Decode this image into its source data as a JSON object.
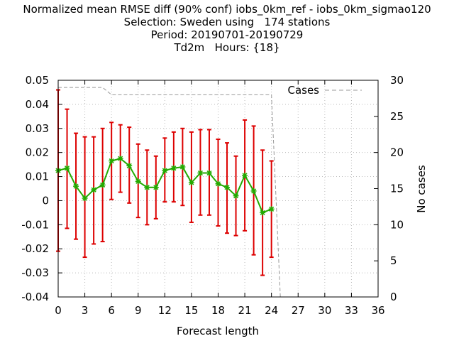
{
  "title_lines": [
    "Normalized mean RMSE diff (90% conf) iobs_0km_ref - iobs_0km_sigmao120",
    "Selection: Sweden using   174 stations",
    "Period: 20190701-20190729",
    "Td2m   Hours: {18}"
  ],
  "chart_data": {
    "type": "line",
    "title": "Normalized mean RMSE diff (90% conf) iobs_0km_ref - iobs_0km_sigmao120",
    "xlabel": "Forecast length",
    "ylabel": "",
    "y2label": "No cases",
    "xlim": [
      0,
      36
    ],
    "ylim": [
      -0.04,
      0.05
    ],
    "y2lim": [
      0,
      30
    ],
    "xticks": [
      0,
      3,
      6,
      9,
      12,
      15,
      18,
      21,
      24,
      27,
      30,
      33,
      36
    ],
    "xtick_labels": [
      "0",
      "3",
      "6",
      "9",
      "12",
      "15",
      "18",
      "21",
      "24",
      "27",
      "30",
      "33",
      "36"
    ],
    "yticks": [
      -0.04,
      -0.03,
      -0.02,
      -0.01,
      0,
      0.01,
      0.02,
      0.03,
      0.04,
      0.05
    ],
    "ytick_labels": [
      "-0.04",
      "-0.03",
      "-0.02",
      "-0.01",
      "0",
      "0.01",
      "0.02",
      "0.03",
      "0.04",
      "0.05"
    ],
    "y2ticks": [
      0,
      5,
      10,
      15,
      20,
      25,
      30
    ],
    "y2tick_labels": [
      "0",
      "5",
      "10",
      "15",
      "20",
      "25",
      "30"
    ],
    "grid": true,
    "legend": "top-right",
    "series": [
      {
        "name": "",
        "color": "#22aa00",
        "errorbar_color": "#dd0000",
        "x": [
          0,
          1,
          2,
          3,
          4,
          5,
          6,
          7,
          8,
          9,
          10,
          11,
          12,
          13,
          14,
          15,
          16,
          17,
          18,
          19,
          20,
          21,
          22,
          23,
          24
        ],
        "y": [
          0.0125,
          0.0135,
          0.006,
          0.001,
          0.0045,
          0.0065,
          0.0165,
          0.0175,
          0.0145,
          0.008,
          0.0055,
          0.0055,
          0.0125,
          0.0135,
          0.014,
          0.0075,
          0.0115,
          0.0115,
          0.007,
          0.0055,
          0.002,
          0.0105,
          0.004,
          -0.005,
          -0.0035
        ],
        "lower": [
          -0.021,
          -0.0115,
          -0.016,
          -0.0235,
          -0.018,
          -0.017,
          0.0005,
          0.0035,
          -0.001,
          -0.007,
          -0.01,
          -0.0075,
          -0.0005,
          -0.0005,
          -0.002,
          -0.009,
          -0.006,
          -0.006,
          -0.0105,
          -0.0135,
          -0.0145,
          -0.0125,
          -0.0225,
          -0.031,
          -0.0235
        ],
        "upper": [
          0.046,
          0.038,
          0.028,
          0.0265,
          0.0265,
          0.03,
          0.0325,
          0.0315,
          0.0305,
          0.0235,
          0.021,
          0.0185,
          0.026,
          0.0285,
          0.03,
          0.0285,
          0.0295,
          0.0295,
          0.0255,
          0.024,
          0.0185,
          0.0335,
          0.031,
          0.021,
          0.0165
        ]
      },
      {
        "name": "Cases",
        "axis": "y2",
        "color": "#999999",
        "x": [
          0,
          1,
          2,
          3,
          4,
          5,
          6,
          7,
          8,
          9,
          10,
          11,
          12,
          13,
          14,
          15,
          16,
          17,
          18,
          19,
          20,
          21,
          22,
          23,
          24,
          25,
          26,
          27,
          28,
          29,
          30,
          31,
          32,
          33,
          34,
          35,
          36
        ],
        "values": [
          29,
          29,
          29,
          29,
          29,
          29,
          28,
          28,
          28,
          28,
          28,
          28,
          28,
          28,
          28,
          28,
          28,
          28,
          28,
          28,
          28,
          28,
          28,
          28,
          28,
          0,
          0,
          0,
          0,
          0,
          0,
          0,
          0,
          0,
          0,
          0,
          0
        ]
      }
    ]
  }
}
